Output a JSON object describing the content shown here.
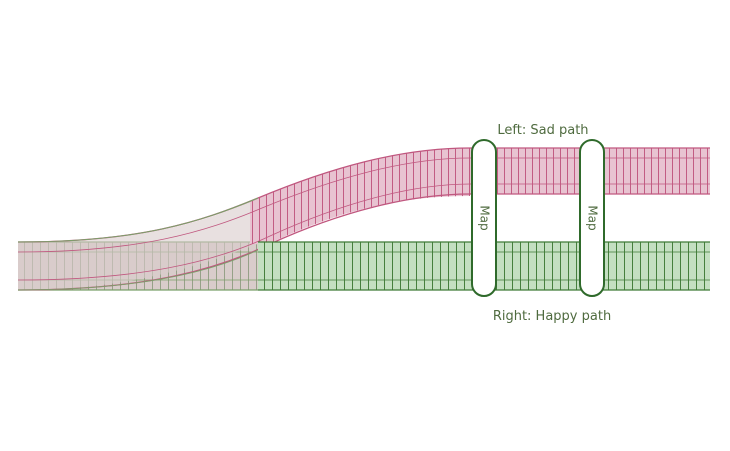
{
  "diagram": {
    "left_label": "Left: Sad path",
    "right_label": "Right: Happy path",
    "map_labels": [
      "Map",
      "Map"
    ],
    "colors": {
      "sad_fill": "#e8c3d1",
      "sad_stroke": "#c0577f",
      "happy_fill": "#c4dfc1",
      "happy_stroke": "#3f7a36",
      "shared_fill": "#d9cccb",
      "shared_stroke": "#7aa06a",
      "gate_stroke": "#2f6a2b",
      "text": "#4f6b3f"
    }
  }
}
